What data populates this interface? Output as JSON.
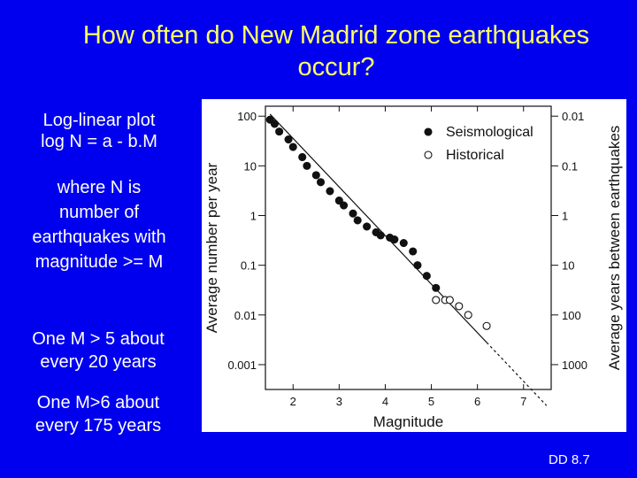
{
  "slide": {
    "title_line1": "How often do New Madrid zone earthquakes",
    "title_line2": "occur?",
    "text_block1_line1": "Log-linear plot",
    "text_block1_line2": "log N  = a - b.M",
    "text_block2_lines": [
      "where N is",
      "number of",
      "earthquakes with",
      "magnitude >= M"
    ],
    "text_block3_lines": [
      "One M > 5 about",
      "every 20 years"
    ],
    "text_block4_lines": [
      "One M>6  about",
      "every 175 years"
    ],
    "slide_number": "DD 8.7"
  },
  "colors": {
    "background": "#0000ee",
    "title": "#ffff66",
    "text": "#ffffff",
    "plot_ink": "#111111"
  },
  "chart_data": {
    "type": "scatter",
    "xlabel": "Magnitude",
    "ylabel_left": "Average number per year",
    "ylabel_right": "Average years between earthquakes",
    "x_ticks": [
      "2",
      "3",
      "4",
      "5",
      "6",
      "7"
    ],
    "x_tick_values": [
      2,
      3,
      4,
      5,
      6,
      7
    ],
    "y_ticks_left": [
      "100",
      "10",
      "1",
      "0.1",
      "0.01",
      "0.001"
    ],
    "y_tick_values_left": [
      100,
      10,
      1,
      0.1,
      0.01,
      0.001
    ],
    "y_ticks_right": [
      "0.01",
      "0.1",
      "1",
      "10",
      "100",
      "1000"
    ],
    "xlim": [
      1.4,
      7.6
    ],
    "ylim_log10": [
      -3.5,
      2.2
    ],
    "y_scale": "log",
    "grid": false,
    "legend_position": "top-right",
    "series": [
      {
        "name": "Seismological",
        "marker": "filled-circle",
        "points": [
          [
            1.5,
            85
          ],
          [
            1.6,
            70
          ],
          [
            1.7,
            49
          ],
          [
            1.9,
            34
          ],
          [
            2.0,
            24
          ],
          [
            2.2,
            15
          ],
          [
            2.3,
            10
          ],
          [
            2.5,
            6.5
          ],
          [
            2.6,
            4.7
          ],
          [
            2.8,
            3.1
          ],
          [
            3.0,
            2.0
          ],
          [
            3.1,
            1.6
          ],
          [
            3.3,
            1.1
          ],
          [
            3.4,
            0.8
          ],
          [
            3.6,
            0.6
          ],
          [
            3.8,
            0.46
          ],
          [
            3.9,
            0.4
          ],
          [
            4.1,
            0.36
          ],
          [
            4.2,
            0.33
          ],
          [
            4.4,
            0.28
          ],
          [
            4.6,
            0.19
          ],
          [
            4.7,
            0.1
          ],
          [
            4.9,
            0.061
          ],
          [
            5.1,
            0.035
          ]
        ]
      },
      {
        "name": "Historical",
        "marker": "open-circle",
        "points": [
          [
            5.1,
            0.02
          ],
          [
            5.3,
            0.02
          ],
          [
            5.4,
            0.02
          ],
          [
            5.6,
            0.015
          ],
          [
            5.8,
            0.01
          ],
          [
            6.2,
            0.006
          ]
        ]
      }
    ],
    "fit_line": {
      "style_solid_to": 6.2,
      "style_dashed_to": 7.5,
      "points": [
        [
          1.5,
          110
        ],
        [
          7.5,
          0.00015
        ]
      ]
    }
  }
}
